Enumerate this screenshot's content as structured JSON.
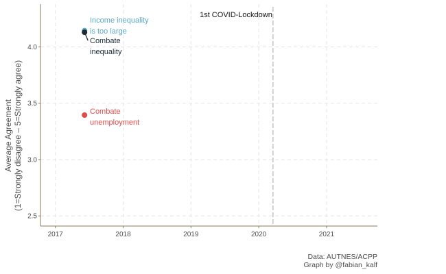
{
  "chart_data": {
    "type": "scatter",
    "xlim": [
      2016.78,
      2021.75
    ],
    "ylim": [
      2.41,
      4.38
    ],
    "x_ticks": [
      2017,
      2018,
      2019,
      2020,
      2021
    ],
    "x_tick_labels": [
      "2017",
      "2018",
      "2019",
      "2020",
      "2021"
    ],
    "y_ticks": [
      2.5,
      3.0,
      3.5,
      4.0
    ],
    "y_tick_labels": [
      "2.5",
      "3.0",
      "3.5",
      "4.0"
    ],
    "ylabel_line1": "Average Agreement",
    "ylabel_line2": "(1=Strongly disagree – 5=Strongly agree)",
    "xlabel": "",
    "grid": true,
    "series": [
      {
        "name": "Income inequality is too large",
        "label_lines": [
          "Income inequality",
          "is too large"
        ],
        "color": "#5ba8c4",
        "points": [
          {
            "x": 2017.43,
            "y": 4.145
          }
        ]
      },
      {
        "name": "Combate inequality",
        "label_lines": [
          "Combate",
          "inequality"
        ],
        "color": "#1c2b36",
        "points": [
          {
            "x": 2017.43,
            "y": 4.13
          }
        ]
      },
      {
        "name": "Combate unemployment",
        "label_lines": [
          "Combate",
          "unemployment"
        ],
        "color": "#e04b4b",
        "points": [
          {
            "x": 2017.43,
            "y": 3.395
          }
        ]
      }
    ],
    "vline": {
      "x": 2020.21,
      "label": "1st COVID-Lockdown",
      "color": "#bbbbbb"
    }
  },
  "caption": {
    "line1": "Data: AUTNES/ACPP",
    "line2": "Graph by @fabian_kalf"
  }
}
